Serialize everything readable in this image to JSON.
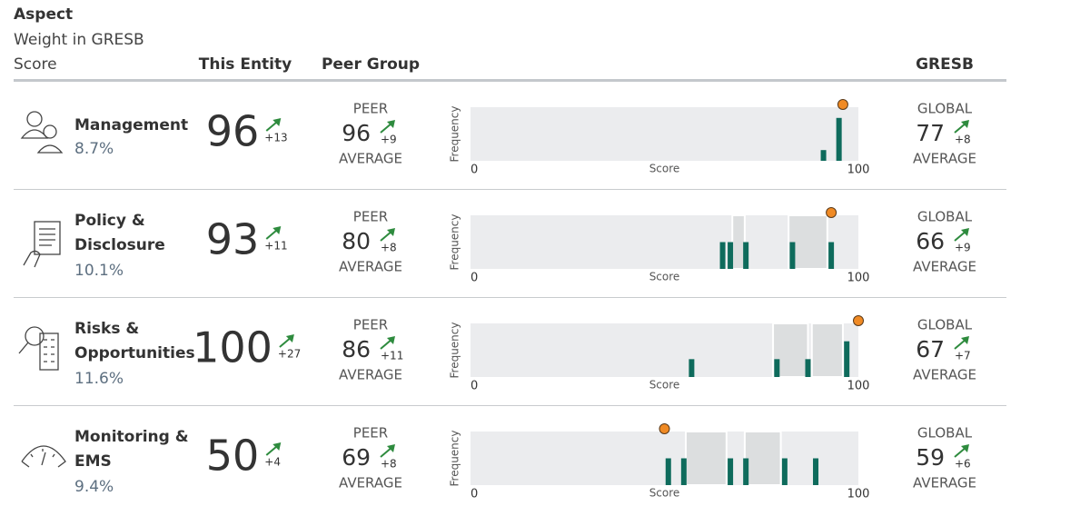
{
  "header": {
    "aspect": "Aspect",
    "weight": "Weight in GRESB",
    "score": "Score",
    "entity": "This Entity",
    "peer": "Peer Group",
    "gresb": "GRESB"
  },
  "histogram_axis": {
    "ylabel": "Frequency",
    "xlabel": "Score",
    "xlim": [
      0,
      100
    ],
    "xticks": [
      0,
      100
    ]
  },
  "aspects": [
    {
      "name": [
        "Management"
      ],
      "weight": "8.7%",
      "entity": {
        "score": 96,
        "change": "+13"
      },
      "peer": {
        "label": "PEER",
        "score": 96,
        "change": "+9",
        "sublabel": "AVERAGE"
      },
      "global": {
        "label": "GLOBAL",
        "score": 77,
        "change": "+8",
        "sublabel": "AVERAGE"
      },
      "histogram": {
        "ylim": [
          0,
          5
        ],
        "bins": [
          {
            "score": 91,
            "frequency": 1
          },
          {
            "score": 95,
            "frequency": 4
          }
        ]
      }
    },
    {
      "name": [
        "Policy &",
        "Disclosure"
      ],
      "weight": "10.1%",
      "entity": {
        "score": 93,
        "change": "+11"
      },
      "peer": {
        "label": "PEER",
        "score": 80,
        "change": "+8",
        "sublabel": "AVERAGE"
      },
      "global": {
        "label": "GLOBAL",
        "score": 66,
        "change": "+9",
        "sublabel": "AVERAGE"
      },
      "histogram": {
        "ylim": [
          0,
          2
        ],
        "bands": [
          [
            67.5,
            70.7
          ],
          [
            82,
            92
          ]
        ],
        "bins": [
          {
            "score": 65,
            "frequency": 1
          },
          {
            "score": 67,
            "frequency": 1
          },
          {
            "score": 71,
            "frequency": 1
          },
          {
            "score": 83,
            "frequency": 1
          },
          {
            "score": 93,
            "frequency": 1
          }
        ]
      }
    },
    {
      "name": [
        "Risks &",
        "Opportunities"
      ],
      "weight": "11.6%",
      "entity": {
        "score": 100,
        "change": "+27"
      },
      "peer": {
        "label": "PEER",
        "score": 86,
        "change": "+11",
        "sublabel": "AVERAGE"
      },
      "global": {
        "label": "GLOBAL",
        "score": 67,
        "change": "+7",
        "sublabel": "AVERAGE"
      },
      "histogram": {
        "ylim": [
          0,
          3
        ],
        "bands": [
          [
            78,
            87
          ],
          [
            88,
            96
          ]
        ],
        "bins": [
          {
            "score": 57,
            "frequency": 1
          },
          {
            "score": 79,
            "frequency": 1
          },
          {
            "score": 87,
            "frequency": 1
          },
          {
            "score": 97,
            "frequency": 2
          }
        ]
      }
    },
    {
      "name": [
        "Monitoring &",
        "EMS"
      ],
      "weight": "9.4%",
      "entity": {
        "score": 50,
        "change": "+4"
      },
      "peer": {
        "label": "PEER",
        "score": 69,
        "change": "+8",
        "sublabel": "AVERAGE"
      },
      "global": {
        "label": "GLOBAL",
        "score": 59,
        "change": "+6",
        "sublabel": "AVERAGE"
      },
      "histogram": {
        "ylim": [
          0,
          2
        ],
        "bands": [
          [
            55.5,
            66
          ],
          [
            70.7,
            80
          ]
        ],
        "bins": [
          {
            "score": 51,
            "frequency": 1
          },
          {
            "score": 55,
            "frequency": 1
          },
          {
            "score": 67,
            "frequency": 1
          },
          {
            "score": 71,
            "frequency": 1
          },
          {
            "score": 81,
            "frequency": 1
          },
          {
            "score": 89,
            "frequency": 1
          }
        ]
      }
    }
  ]
}
